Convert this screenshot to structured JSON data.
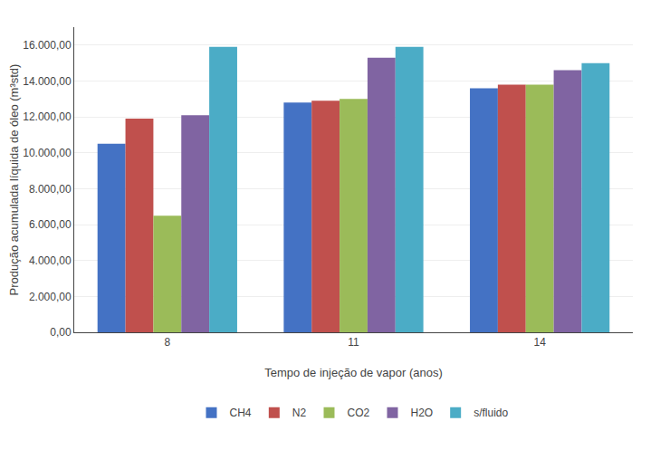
{
  "chart_data": {
    "type": "bar",
    "xlabel": "Tempo de injeção de vapor (anos)",
    "ylabel": "Produção acumulada líquida de óleo (m³std)",
    "categories": [
      "8",
      "11",
      "14"
    ],
    "series": [
      {
        "name": "CH4",
        "color": "#4472C4",
        "values": [
          10500,
          12800,
          13600
        ]
      },
      {
        "name": "N2",
        "color": "#C0504D",
        "values": [
          11900,
          12900,
          13800
        ]
      },
      {
        "name": "CO2",
        "color": "#9BBB59",
        "values": [
          6500,
          13000,
          13800
        ]
      },
      {
        "name": "H2O",
        "color": "#8064A2",
        "values": [
          12100,
          15300,
          14600
        ]
      },
      {
        "name": "s/fluido",
        "color": "#4BACC6",
        "values": [
          15900,
          15900,
          15000
        ]
      }
    ],
    "ylim": [
      0,
      17000
    ],
    "yticks": [
      {
        "value": 0,
        "label": "0,00"
      },
      {
        "value": 2000,
        "label": "2.000,00"
      },
      {
        "value": 4000,
        "label": "4.000,00"
      },
      {
        "value": 6000,
        "label": "6.000,00"
      },
      {
        "value": 8000,
        "label": "8.000,00"
      },
      {
        "value": 10000,
        "label": "10.000,00"
      },
      {
        "value": 12000,
        "label": "12.000,00"
      },
      {
        "value": 14000,
        "label": "14.000,00"
      },
      {
        "value": 16000,
        "label": "16.000,00"
      }
    ],
    "grid": true,
    "legend": "bottom"
  }
}
